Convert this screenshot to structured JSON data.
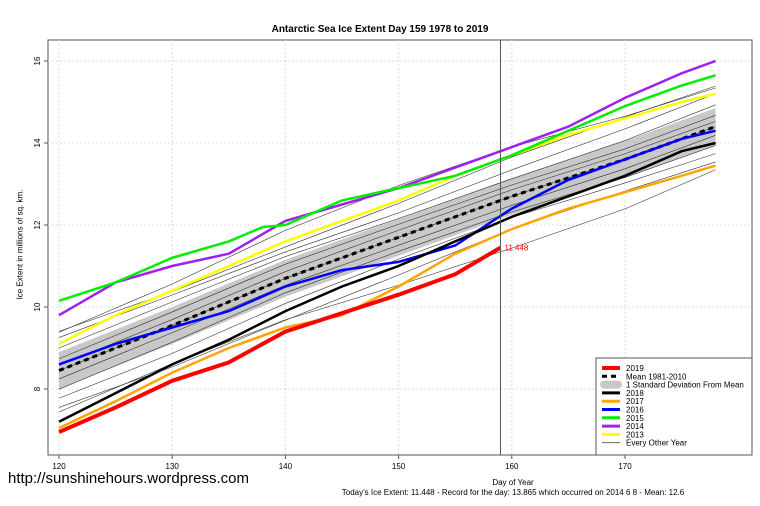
{
  "chart_data": {
    "type": "line",
    "title": "Antarctic Sea Ice Extent Day 159 1978 to 2019",
    "xlabel": "Day of Year",
    "ylabel": "Ice Extent in millions of sq. km.",
    "xlim": [
      119,
      179
    ],
    "ylim": [
      6.6,
      16.5
    ],
    "xticks": [
      120,
      130,
      140,
      150,
      160,
      170
    ],
    "yticks": [
      8,
      10,
      12,
      14,
      16
    ],
    "grid": true,
    "legend_placement": "bottom-right",
    "vline_day": 159,
    "annotation": "11.448",
    "mean": {
      "name": "Mean 1981-2010",
      "x": [
        120,
        130,
        140,
        150,
        160,
        170,
        178
      ],
      "y": [
        8.45,
        9.55,
        10.7,
        11.7,
        12.7,
        13.6,
        14.4
      ]
    },
    "sd_band": {
      "name": "1 Standard Deviation From Mean",
      "width": 0.45
    },
    "series": [
      {
        "name": "2019",
        "color": "#ff0000",
        "x": [
          120,
          125,
          130,
          135,
          140,
          145,
          150,
          155,
          159
        ],
        "y": [
          6.95,
          7.55,
          8.2,
          8.65,
          9.4,
          9.85,
          10.3,
          10.8,
          11.448
        ]
      },
      {
        "name": "2018",
        "color": "#000000",
        "x": [
          120,
          125,
          130,
          135,
          140,
          145,
          150,
          155,
          160,
          165,
          170,
          175,
          178
        ],
        "y": [
          7.2,
          7.9,
          8.6,
          9.2,
          9.9,
          10.5,
          11.0,
          11.6,
          12.2,
          12.7,
          13.2,
          13.8,
          14.0
        ]
      },
      {
        "name": "2017",
        "color": "#ffa500",
        "x": [
          120,
          125,
          130,
          135,
          140,
          145,
          150,
          155,
          160,
          165,
          170,
          175,
          178
        ],
        "y": [
          7.05,
          7.7,
          8.4,
          9.0,
          9.5,
          9.8,
          10.5,
          11.3,
          11.9,
          12.4,
          12.8,
          13.2,
          13.45
        ]
      },
      {
        "name": "2016",
        "color": "#0000ff",
        "x": [
          120,
          125,
          130,
          135,
          140,
          145,
          150,
          155,
          160,
          165,
          170,
          175,
          178
        ],
        "y": [
          8.6,
          9.1,
          9.5,
          9.9,
          10.5,
          10.9,
          11.1,
          11.5,
          12.4,
          13.1,
          13.6,
          14.1,
          14.3
        ]
      },
      {
        "name": "2015",
        "color": "#00ee00",
        "x": [
          120,
          125,
          130,
          135,
          138,
          140,
          145,
          150,
          155,
          160,
          165,
          170,
          175,
          178
        ],
        "y": [
          10.15,
          10.6,
          11.2,
          11.6,
          11.95,
          12.0,
          12.6,
          12.9,
          13.2,
          13.7,
          14.3,
          14.9,
          15.4,
          15.65
        ]
      },
      {
        "name": "2014",
        "color": "#a020f0",
        "x": [
          120,
          125,
          130,
          135,
          140,
          145,
          150,
          155,
          160,
          165,
          170,
          175,
          178
        ],
        "y": [
          9.8,
          10.6,
          11.0,
          11.3,
          12.1,
          12.5,
          12.9,
          13.4,
          13.9,
          14.4,
          15.1,
          15.7,
          16.0
        ]
      },
      {
        "name": "2013",
        "color": "#ffff00",
        "x": [
          120,
          125,
          130,
          135,
          140,
          145,
          150,
          155,
          160,
          165,
          170,
          175,
          178
        ],
        "y": [
          9.1,
          9.8,
          10.4,
          11.0,
          11.6,
          12.1,
          12.6,
          13.2,
          13.7,
          14.2,
          14.6,
          15.0,
          15.2
        ]
      }
    ],
    "other_years": {
      "name": "Every Other Year",
      "offsets": [
        -0.9,
        -0.6,
        -0.4,
        -0.2,
        0,
        0.15,
        0.3,
        0.5,
        0.7,
        0.9,
        -1.1,
        1.1
      ]
    }
  },
  "footer": {
    "url": "http://sunshinehours.wordpress.com",
    "summary": "Today's Ice Extent: 11.448  - Record for the day: 13.865 which occurred on 2014 6 8  - Mean: 12.6"
  }
}
